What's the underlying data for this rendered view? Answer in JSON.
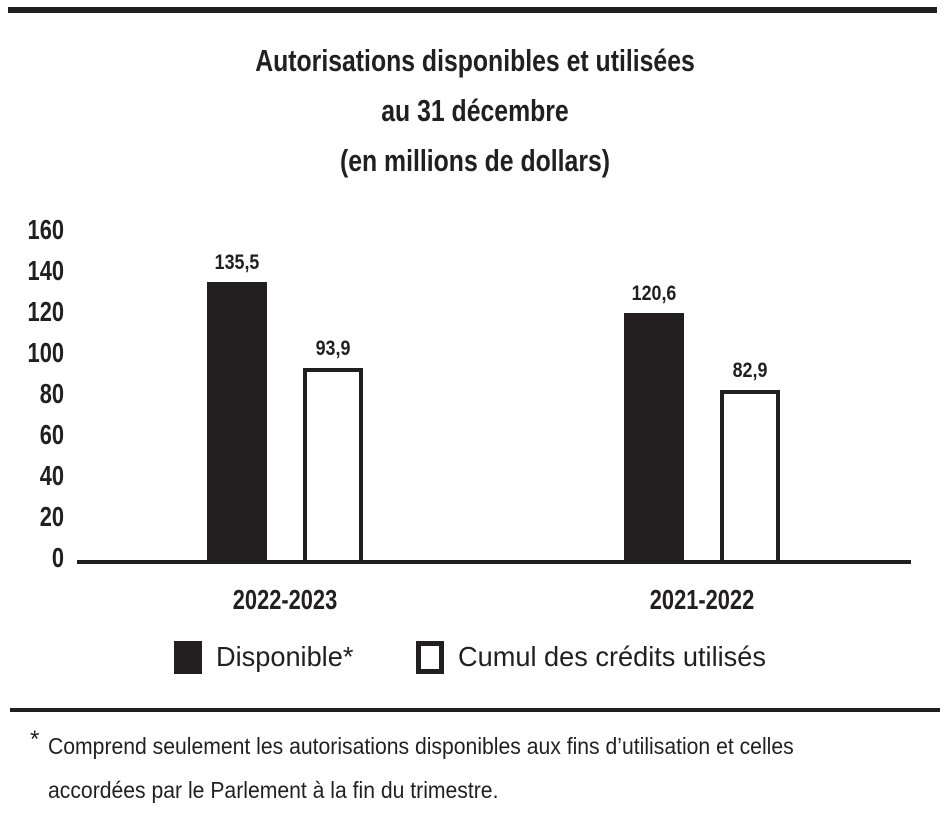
{
  "title": {
    "line1": "Autorisations disponibles et utilisées",
    "line2": "au 31 décembre",
    "line3": "(en millions de dollars)"
  },
  "chart_data": {
    "type": "bar",
    "categories": [
      "2022-2023",
      "2021-2022"
    ],
    "series": [
      {
        "name": "Disponible*",
        "style": "filled",
        "values": [
          135.5,
          120.6
        ]
      },
      {
        "name": "Cumul des crédits utilisés",
        "style": "outlined",
        "values": [
          93.9,
          82.9
        ]
      }
    ],
    "value_labels": {
      "decimal_separator": ",",
      "labels": [
        [
          "135,5",
          "120,6"
        ],
        [
          "93,9",
          "82,9"
        ]
      ]
    },
    "title": "Autorisations disponibles et utilisées au 31 décembre (en millions de dollars)",
    "xlabel": "",
    "ylabel": "",
    "yticks": [
      0,
      20,
      40,
      60,
      80,
      100,
      120,
      140,
      160
    ],
    "ylim": [
      0,
      160
    ],
    "grid": false,
    "legend_position": "bottom"
  },
  "legend": {
    "items": [
      {
        "label": "Disponible*",
        "swatch": "filled-black-square"
      },
      {
        "label": "Cumul des crédits utilisés",
        "swatch": "outlined-white-square"
      }
    ]
  },
  "footnote": {
    "marker": "*",
    "line1": "Comprend seulement les autorisations disponibles aux fins d’utilisation et celles",
    "line2": "accordées par le Parlement à la fin du trimestre."
  },
  "colors": {
    "ink": "#231f20",
    "background": "#ffffff",
    "bar_fill": "#231f20",
    "bar_outline": "#231f20"
  }
}
